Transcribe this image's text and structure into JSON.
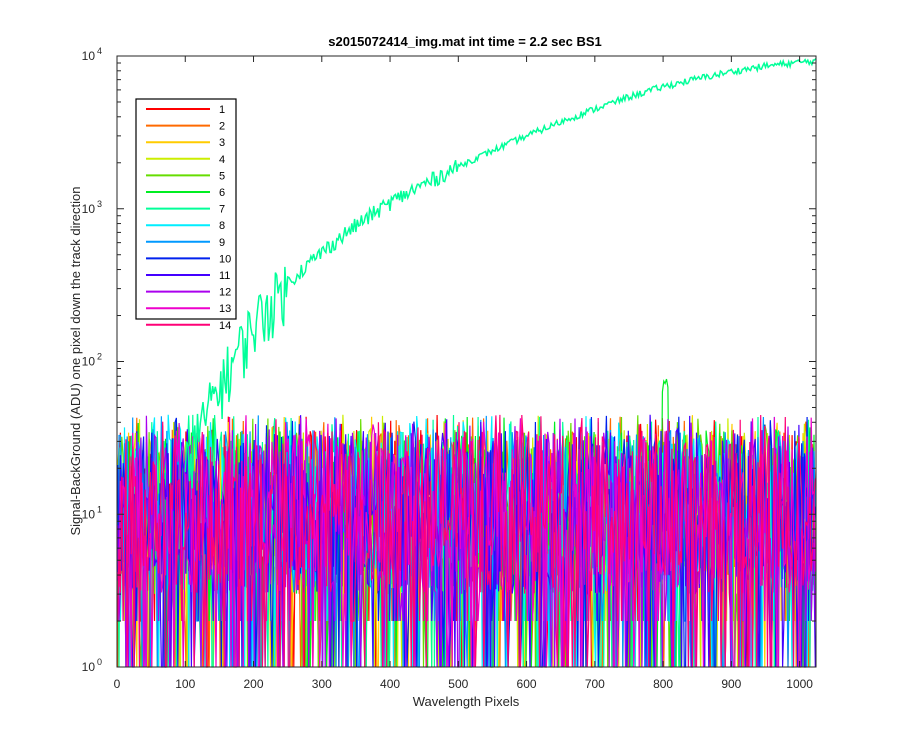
{
  "chart_data": {
    "type": "line",
    "title": "s2015072414_img.mat int time = 2.2 sec   BS1",
    "xlabel": "Wavelength Pixels",
    "ylabel": "Signal-BackGround (ADU) one pixel down the track direction",
    "xlim": [
      0,
      1024
    ],
    "ylim": [
      1,
      10000
    ],
    "yscale": "log",
    "grid": false,
    "legend_position": "top-left",
    "x_ticks": [
      0,
      100,
      200,
      300,
      400,
      500,
      600,
      700,
      800,
      900,
      1000
    ],
    "y_ticks": [
      {
        "value": 1,
        "base": "10",
        "exp": "0"
      },
      {
        "value": 10,
        "base": "10",
        "exp": "1"
      },
      {
        "value": 100,
        "base": "10",
        "exp": "2"
      },
      {
        "value": 1000,
        "base": "10",
        "exp": "3"
      },
      {
        "value": 10000,
        "base": "10",
        "exp": "4"
      }
    ],
    "noise_series_note_range": [
      1,
      45
    ],
    "series": [
      {
        "name": "1",
        "color": "#ff0000"
      },
      {
        "name": "2",
        "color": "#ff6a00"
      },
      {
        "name": "3",
        "color": "#ffcc00"
      },
      {
        "name": "4",
        "color": "#ccee00"
      },
      {
        "name": "5",
        "color": "#66dd00"
      },
      {
        "name": "6",
        "color": "#00ee22"
      },
      {
        "name": "7",
        "color": "#00ff99",
        "signal_points": [
          {
            "x": 100,
            "y": 20
          },
          {
            "x": 120,
            "y": 35
          },
          {
            "x": 150,
            "y": 70
          },
          {
            "x": 200,
            "y": 180
          },
          {
            "x": 250,
            "y": 330
          },
          {
            "x": 300,
            "y": 520
          },
          {
            "x": 350,
            "y": 780
          },
          {
            "x": 400,
            "y": 1100
          },
          {
            "x": 450,
            "y": 1450
          },
          {
            "x": 500,
            "y": 1900
          },
          {
            "x": 550,
            "y": 2400
          },
          {
            "x": 600,
            "y": 3000
          },
          {
            "x": 650,
            "y": 3700
          },
          {
            "x": 700,
            "y": 4500
          },
          {
            "x": 750,
            "y": 5400
          },
          {
            "x": 800,
            "y": 6300
          },
          {
            "x": 850,
            "y": 7100
          },
          {
            "x": 900,
            "y": 7900
          },
          {
            "x": 950,
            "y": 8600
          },
          {
            "x": 1000,
            "y": 9100
          },
          {
            "x": 1024,
            "y": 9300
          }
        ]
      },
      {
        "name": "8",
        "color": "#00eeff"
      },
      {
        "name": "9",
        "color": "#0099ff"
      },
      {
        "name": "10",
        "color": "#0022ee"
      },
      {
        "name": "11",
        "color": "#4400ff"
      },
      {
        "name": "12",
        "color": "#aa00ee"
      },
      {
        "name": "13",
        "color": "#ee00cc"
      },
      {
        "name": "14",
        "color": "#ff0077"
      }
    ]
  }
}
